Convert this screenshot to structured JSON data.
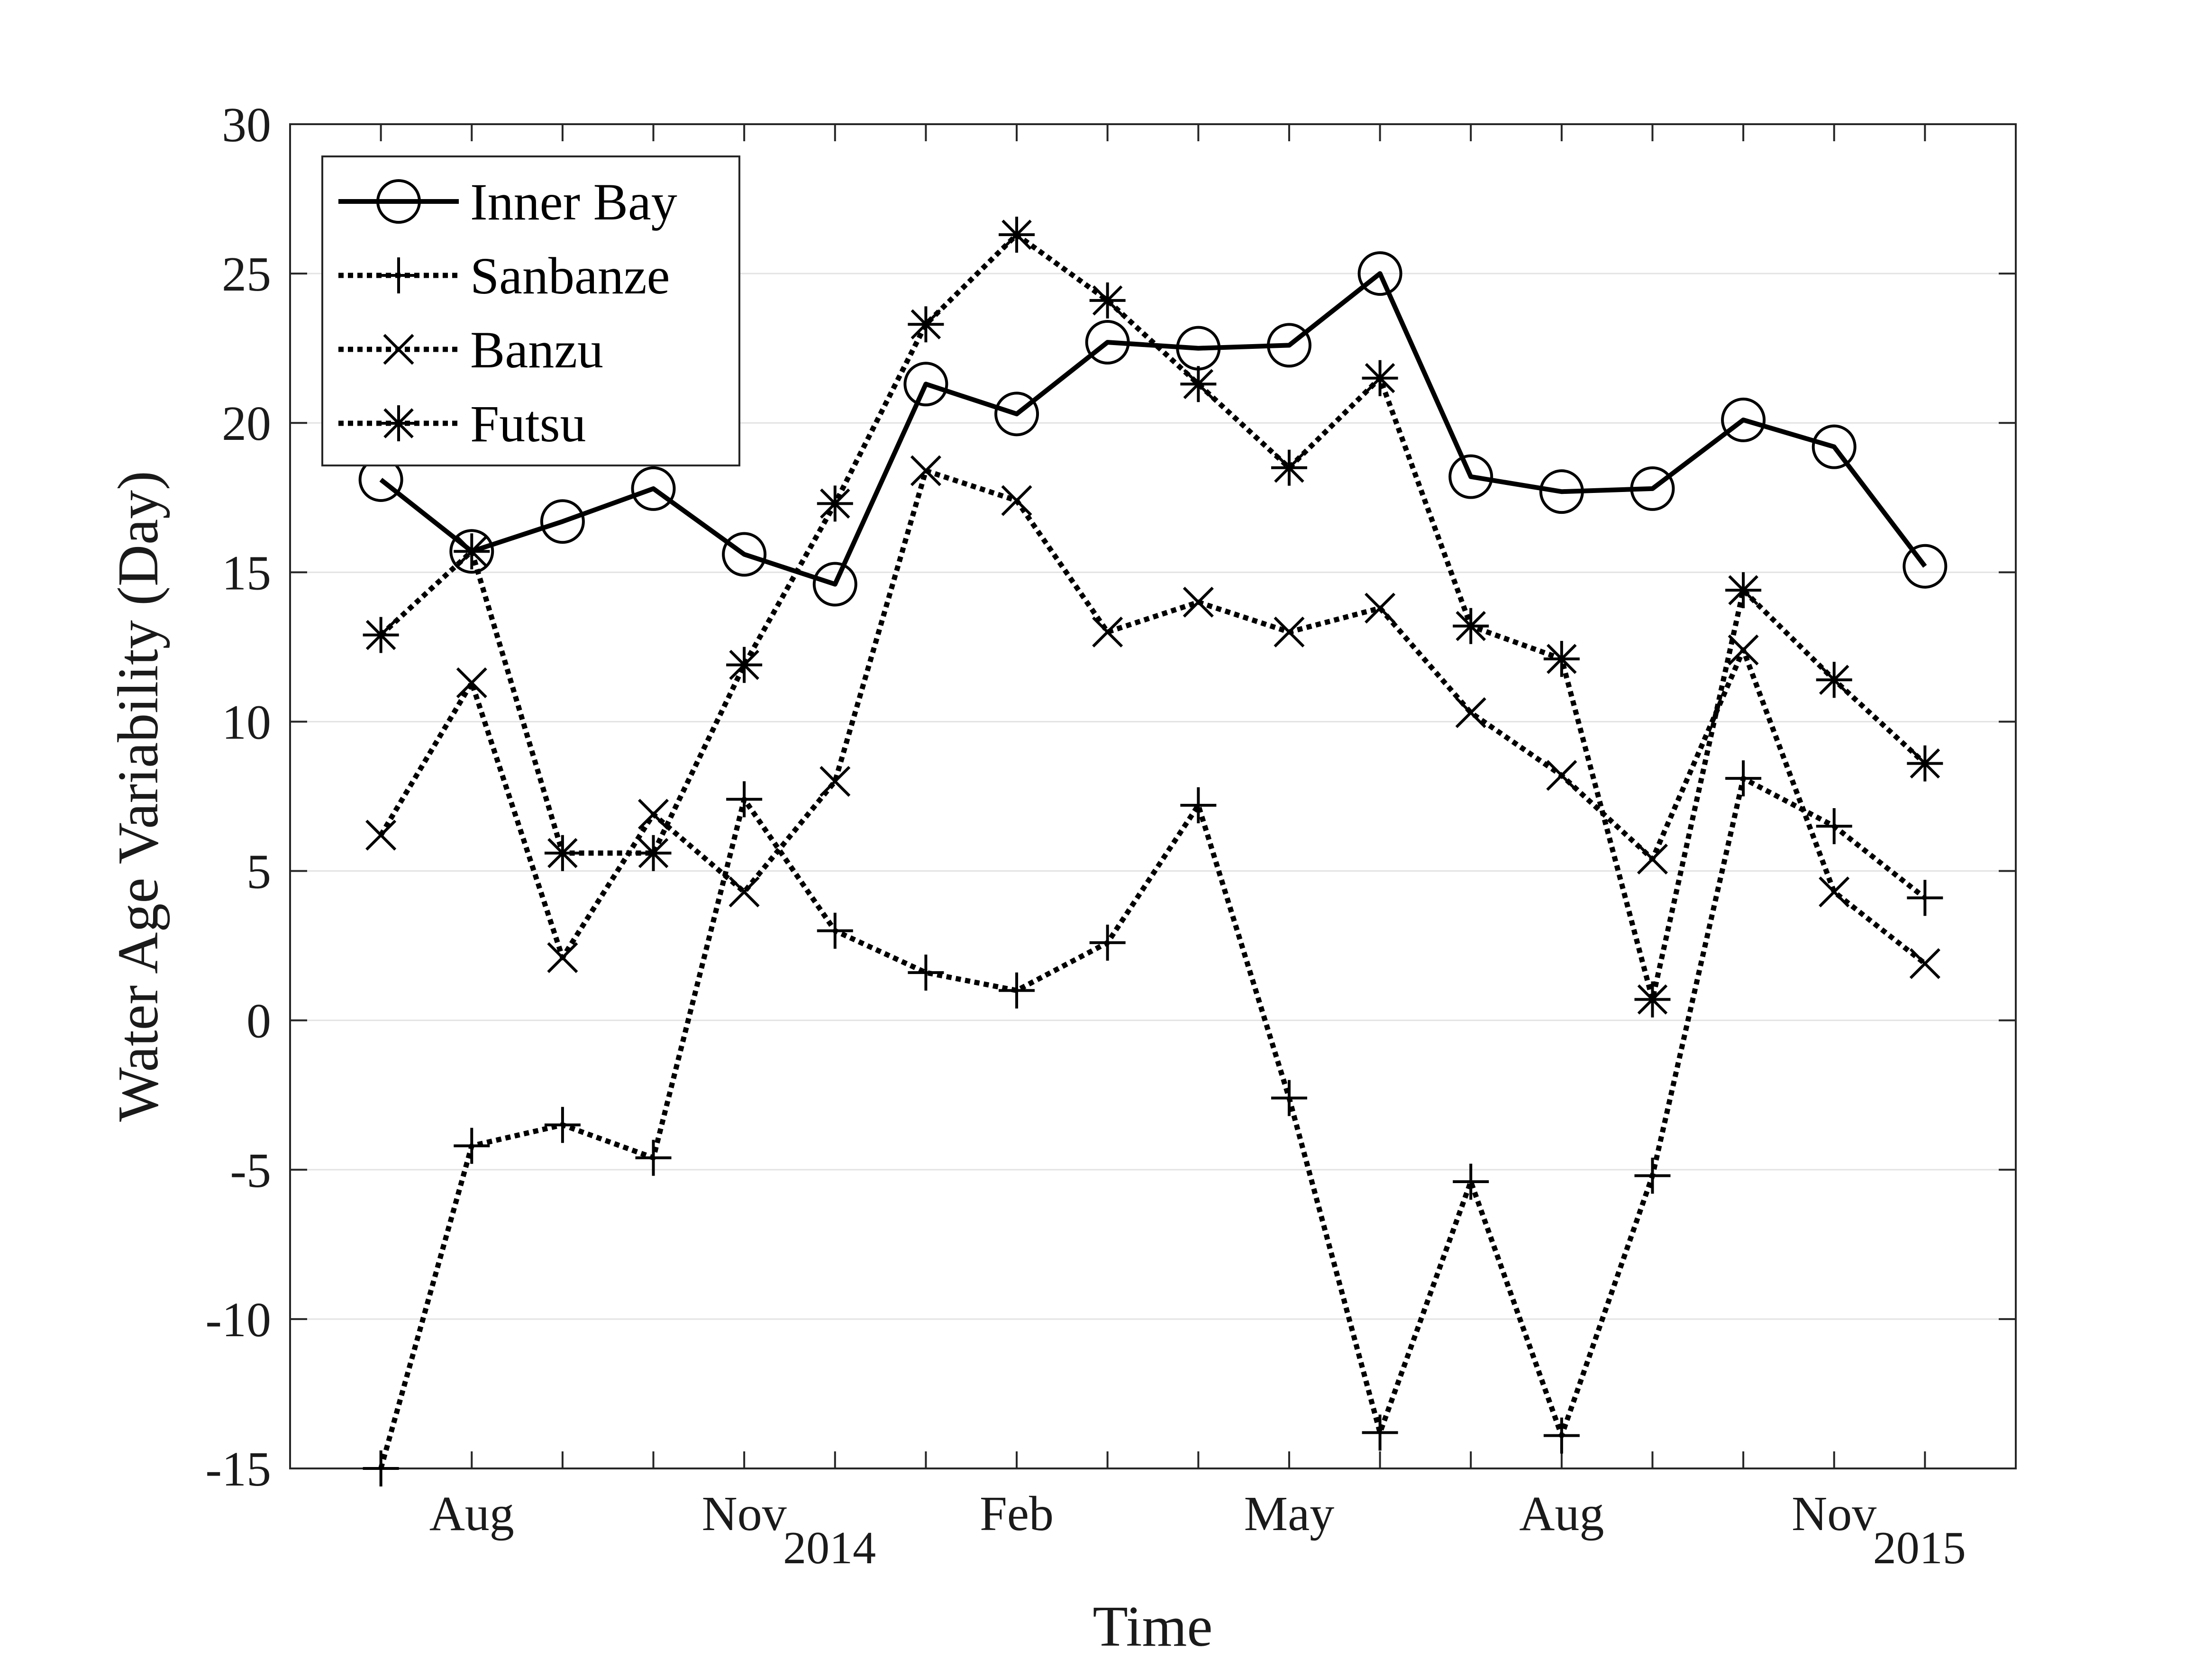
{
  "chart_data": {
    "type": "line",
    "title": "",
    "xlabel": "Time",
    "ylabel": "Water Age Variability (Day)",
    "ylim": [
      -15,
      30
    ],
    "yticks": [
      -15,
      -10,
      -5,
      0,
      5,
      10,
      15,
      20,
      25,
      30
    ],
    "x": [
      "2014-07",
      "2014-08",
      "2014-09",
      "2014-10",
      "2014-11",
      "2014-12",
      "2015-01",
      "2015-02",
      "2015-03",
      "2015-04",
      "2015-05",
      "2015-06",
      "2015-07",
      "2015-08",
      "2015-09",
      "2015-10",
      "2015-11",
      "2015-12"
    ],
    "x_range": [
      "2014-06",
      "2016-01"
    ],
    "xticks": [
      {
        "month": "2014-08",
        "label": "Aug",
        "year": ""
      },
      {
        "month": "2014-11",
        "label": "Nov",
        "year": "2014"
      },
      {
        "month": "2015-02",
        "label": "Feb",
        "year": ""
      },
      {
        "month": "2015-05",
        "label": "May",
        "year": ""
      },
      {
        "month": "2015-08",
        "label": "Aug",
        "year": ""
      },
      {
        "month": "2015-11",
        "label": "Nov",
        "year": "2015"
      }
    ],
    "grid": true,
    "grid_axis": "y",
    "legend_position": "top-left",
    "series": [
      {
        "name": "Inner Bay",
        "line": "solid",
        "marker": "circle",
        "color": "#000000",
        "values": [
          18.1,
          15.7,
          16.7,
          17.8,
          15.6,
          14.6,
          21.3,
          20.3,
          22.7,
          22.5,
          22.6,
          25.0,
          18.2,
          17.7,
          17.8,
          20.1,
          19.2,
          15.2
        ]
      },
      {
        "name": "Sanbanze",
        "line": "dotted",
        "marker": "plus",
        "color": "#000000",
        "values": [
          -15.0,
          -4.2,
          -3.5,
          -4.6,
          7.4,
          3.0,
          1.6,
          1.0,
          2.6,
          7.2,
          -2.6,
          -13.8,
          -5.4,
          -13.9,
          -5.2,
          8.1,
          6.5,
          4.1
        ]
      },
      {
        "name": "Banzu",
        "line": "dotted",
        "marker": "x",
        "color": "#000000",
        "values": [
          6.2,
          11.3,
          2.1,
          6.9,
          4.3,
          8.0,
          18.4,
          17.4,
          13.0,
          14.0,
          13.0,
          13.8,
          10.3,
          8.2,
          5.4,
          12.4,
          4.3,
          1.9
        ]
      },
      {
        "name": "Futsu",
        "line": "dotted",
        "marker": "star",
        "color": "#000000",
        "values": [
          12.9,
          15.7,
          5.6,
          5.6,
          11.9,
          17.3,
          23.3,
          26.3,
          24.1,
          21.3,
          18.5,
          21.5,
          13.2,
          12.1,
          0.7,
          14.4,
          11.4,
          8.6
        ]
      }
    ]
  }
}
